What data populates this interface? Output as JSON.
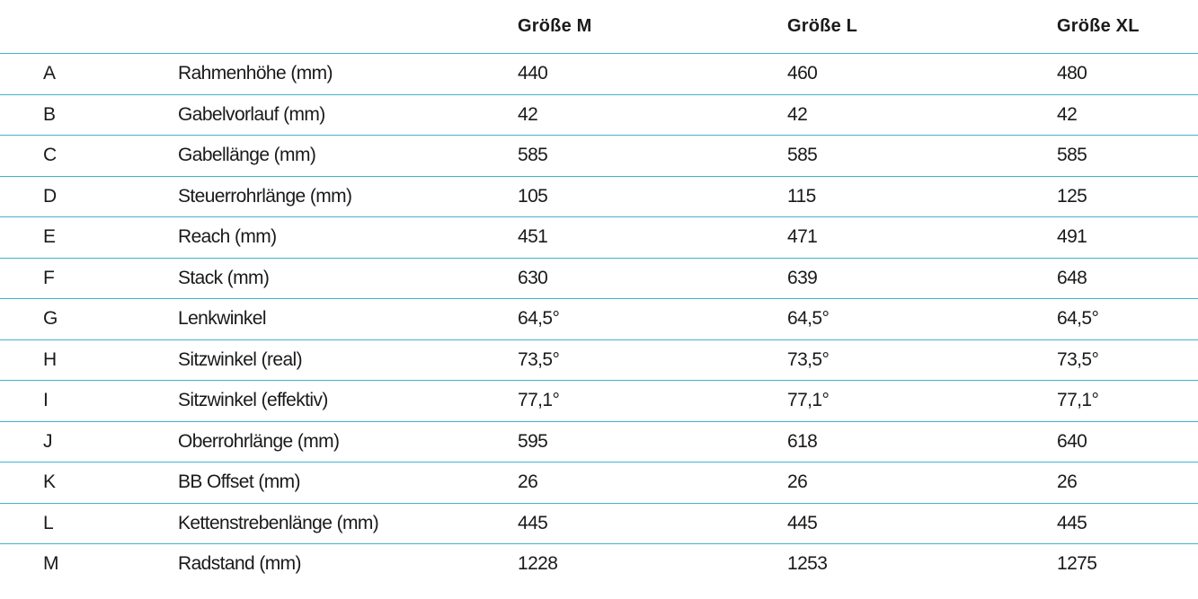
{
  "header": {
    "key": "",
    "label": "",
    "sizes": [
      "Größe M",
      "Größe L",
      "Größe XL"
    ]
  },
  "rows": [
    {
      "key": "A",
      "label": "Rahmenhöhe (mm)",
      "m": "440",
      "l": "460",
      "xl": "480"
    },
    {
      "key": "B",
      "label": "Gabelvorlauf (mm)",
      "m": "42",
      "l": "42",
      "xl": "42"
    },
    {
      "key": "C",
      "label": "Gabellänge (mm)",
      "m": "585",
      "l": "585",
      "xl": "585"
    },
    {
      "key": "D",
      "label": "Steuerrohrlänge (mm)",
      "m": "105",
      "l": "115",
      "xl": "125"
    },
    {
      "key": "E",
      "label": "Reach (mm)",
      "m": "451",
      "l": "471",
      "xl": "491"
    },
    {
      "key": "F",
      "label": "Stack (mm)",
      "m": "630",
      "l": "639",
      "xl": "648"
    },
    {
      "key": "G",
      "label": "Lenkwinkel",
      "m": "64,5°",
      "l": "64,5°",
      "xl": "64,5°"
    },
    {
      "key": "H",
      "label": "Sitzwinkel (real)",
      "m": "73,5°",
      "l": "73,5°",
      "xl": "73,5°"
    },
    {
      "key": "I",
      "label": "Sitzwinkel (effektiv)",
      "m": "77,1°",
      "l": "77,1°",
      "xl": "77,1°"
    },
    {
      "key": "J",
      "label": "Oberrohrlänge (mm)",
      "m": "595",
      "l": "618",
      "xl": "640"
    },
    {
      "key": "K",
      "label": "BB Offset (mm)",
      "m": "26",
      "l": "26",
      "xl": "26"
    },
    {
      "key": "L",
      "label": "Kettenstrebenlänge (mm)",
      "m": "445",
      "l": "445",
      "xl": "445"
    },
    {
      "key": "M",
      "label": "Radstand (mm)",
      "m": "1228",
      "l": "1253",
      "xl": "1275"
    }
  ],
  "colors": {
    "rule": "#3fb4cf",
    "text": "#1a1a1a"
  }
}
